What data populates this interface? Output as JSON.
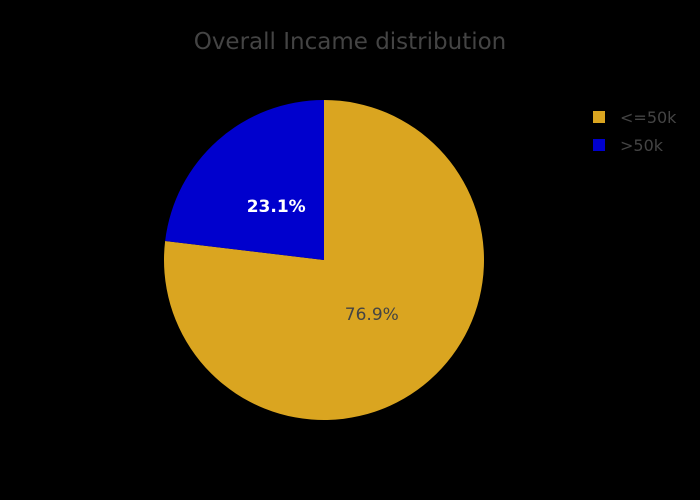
{
  "chart_data": {
    "type": "pie",
    "title": "Overall Incame distribution",
    "labels": [
      "<=50k",
      ">50k"
    ],
    "values": [
      76.9,
      23.1
    ],
    "percent_labels": [
      "76.9%",
      "23.1%"
    ],
    "colors": [
      "#DAA520",
      "#0000CD"
    ],
    "label_colors": [
      "#444444",
      "#FFFFFF"
    ],
    "label_bold": [
      false,
      true
    ],
    "legend_placement": "top-right",
    "background": "#000000",
    "start_direction": "clockwise from top"
  }
}
